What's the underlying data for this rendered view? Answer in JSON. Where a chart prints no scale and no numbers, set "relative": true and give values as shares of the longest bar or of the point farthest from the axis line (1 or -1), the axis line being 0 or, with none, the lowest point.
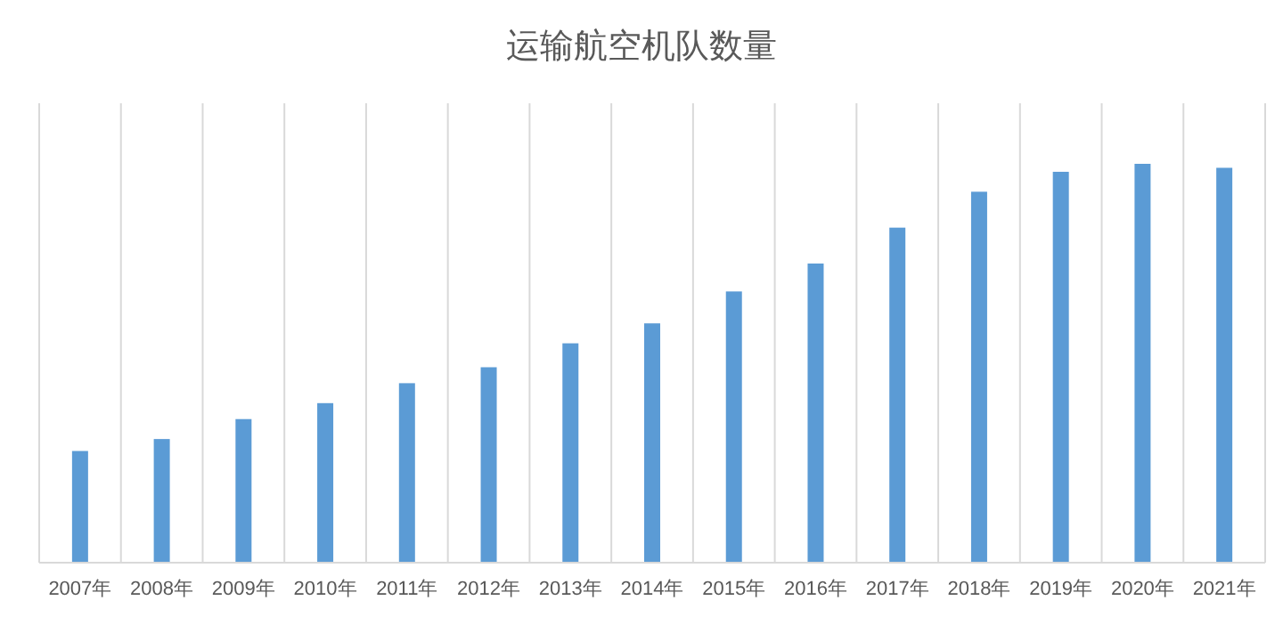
{
  "chart_data": {
    "type": "bar",
    "title": "运输航空机队数量",
    "relative": true,
    "grid": "x",
    "categories": [
      "2007年",
      "2008年",
      "2009年",
      "2010年",
      "2011年",
      "2012年",
      "2013年",
      "2014年",
      "2015年",
      "2016年",
      "2017年",
      "2018年",
      "2019年",
      "2020年",
      "2021年"
    ],
    "series": [
      {
        "color": "#5b9bd5",
        "values": [
          0.28,
          0.31,
          0.36,
          0.4,
          0.45,
          0.49,
          0.55,
          0.6,
          0.68,
          0.75,
          0.84,
          0.93,
          0.98,
          1,
          0.99
        ]
      }
    ]
  }
}
